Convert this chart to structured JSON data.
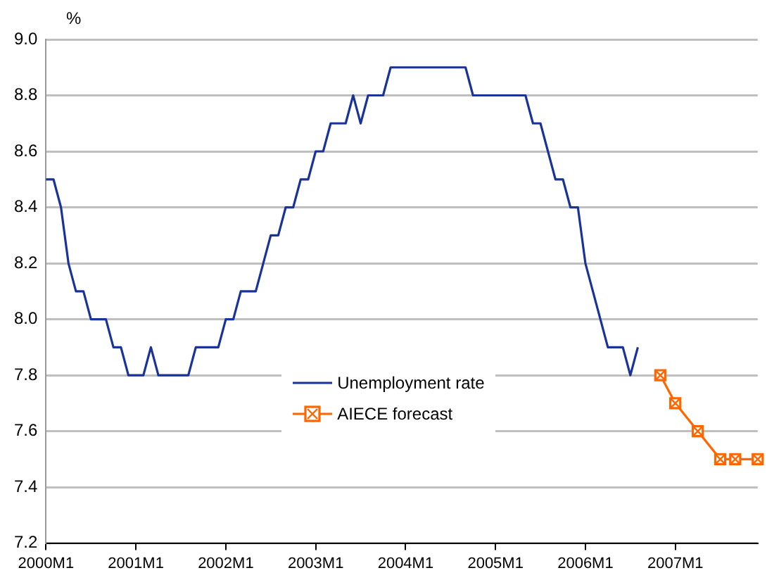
{
  "chart_data": {
    "type": "line",
    "ylabel": "%",
    "categories": [
      "2000M1",
      null,
      null,
      null,
      null,
      null,
      null,
      null,
      null,
      null,
      null,
      null,
      "2001M1",
      null,
      null,
      null,
      null,
      null,
      null,
      null,
      null,
      null,
      null,
      null,
      "2002M1",
      null,
      null,
      null,
      null,
      null,
      null,
      null,
      null,
      null,
      null,
      null,
      "2003M1",
      null,
      null,
      null,
      null,
      null,
      null,
      null,
      null,
      null,
      null,
      null,
      "2004M1",
      null,
      null,
      null,
      null,
      null,
      null,
      null,
      null,
      null,
      null,
      null,
      "2005M1",
      null,
      null,
      null,
      null,
      null,
      null,
      null,
      null,
      null,
      null,
      null,
      "2006M1",
      null,
      null,
      null,
      null,
      null,
      null,
      null,
      null,
      null,
      null,
      null,
      "2007M1",
      null,
      null,
      null,
      null,
      null,
      null,
      null,
      null,
      null,
      null,
      null
    ],
    "series": [
      {
        "name": "Unemployment rate",
        "color": "#1a3399",
        "marker": "none",
        "values": [
          8.5,
          8.5,
          8.4,
          8.2,
          8.1,
          8.1,
          8.0,
          8.0,
          8.0,
          7.9,
          7.9,
          7.8,
          7.8,
          7.8,
          7.9,
          7.8,
          7.8,
          7.8,
          7.8,
          7.8,
          7.9,
          7.9,
          7.9,
          7.9,
          8.0,
          8.0,
          8.1,
          8.1,
          8.1,
          8.2,
          8.3,
          8.3,
          8.4,
          8.4,
          8.5,
          8.5,
          8.6,
          8.6,
          8.7,
          8.7,
          8.7,
          8.8,
          8.7,
          8.8,
          8.8,
          8.8,
          8.9,
          8.9,
          8.9,
          8.9,
          8.9,
          8.9,
          8.9,
          8.9,
          8.9,
          8.9,
          8.9,
          8.8,
          8.8,
          8.8,
          8.8,
          8.8,
          8.8,
          8.8,
          8.8,
          8.7,
          8.7,
          8.6,
          8.5,
          8.5,
          8.4,
          8.4,
          8.2,
          8.1,
          8.0,
          7.9,
          7.9,
          7.9,
          7.8,
          7.9,
          null,
          null,
          null,
          null,
          null,
          null,
          null,
          null,
          null,
          null,
          null,
          null,
          null,
          null,
          null,
          null
        ]
      },
      {
        "name": "AIECE forecast",
        "color": "#ff6600",
        "marker": "square",
        "values": [
          null,
          null,
          null,
          null,
          null,
          null,
          null,
          null,
          null,
          null,
          null,
          null,
          null,
          null,
          null,
          null,
          null,
          null,
          null,
          null,
          null,
          null,
          null,
          null,
          null,
          null,
          null,
          null,
          null,
          null,
          null,
          null,
          null,
          null,
          null,
          null,
          null,
          null,
          null,
          null,
          null,
          null,
          null,
          null,
          null,
          null,
          null,
          null,
          null,
          null,
          null,
          null,
          null,
          null,
          null,
          null,
          null,
          null,
          null,
          null,
          null,
          null,
          null,
          null,
          null,
          null,
          null,
          null,
          null,
          null,
          null,
          null,
          null,
          null,
          null,
          null,
          null,
          null,
          null,
          null,
          null,
          null,
          7.8,
          null,
          7.7,
          null,
          null,
          7.6,
          null,
          null,
          7.5,
          null,
          7.5,
          null,
          null,
          7.5
        ]
      }
    ],
    "ylim": [
      7.2,
      9.0
    ],
    "yticks": [
      {
        "value": 7.2,
        "label": "7.2"
      },
      {
        "value": 7.4,
        "label": "7.4"
      },
      {
        "value": 7.6,
        "label": "7.6"
      },
      {
        "value": 7.8,
        "label": "7.8"
      },
      {
        "value": 8.0,
        "label": "8.0"
      },
      {
        "value": 8.2,
        "label": "8.2"
      },
      {
        "value": 8.4,
        "label": "8.4"
      },
      {
        "value": 8.6,
        "label": "8.6"
      },
      {
        "value": 8.8,
        "label": "8.8"
      },
      {
        "value": 9.0,
        "label": "9.0"
      }
    ],
    "grid": "y",
    "legend": "bottom"
  }
}
